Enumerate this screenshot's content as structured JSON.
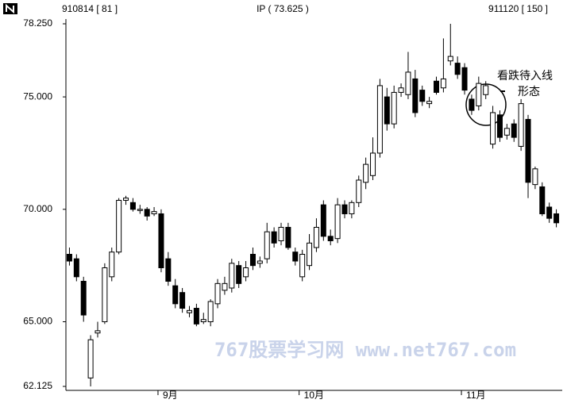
{
  "chart_data": {
    "type": "candlestick",
    "header_left": "910814 [ 81 ]",
    "header_center": "IP ( 73.625 )",
    "header_right": "911120 [ 150 ]",
    "annotation": [
      "看跌待入线",
      "形态"
    ],
    "watermark": "767股票学习网 www.net767.com",
    "categories": [
      null,
      null,
      null,
      null,
      null,
      null,
      null,
      null,
      null,
      null,
      null,
      null,
      null,
      "9月",
      null,
      null,
      null,
      null,
      null,
      null,
      null,
      null,
      null,
      null,
      null,
      null,
      null,
      null,
      null,
      null,
      null,
      null,
      null,
      "10月",
      null,
      null,
      null,
      null,
      null,
      null,
      null,
      null,
      null,
      null,
      null,
      null,
      null,
      null,
      null,
      null,
      null,
      null,
      null,
      null,
      null,
      null,
      "11月",
      null,
      null,
      null,
      null,
      null,
      null,
      null,
      null,
      null,
      null,
      null,
      null,
      null
    ],
    "open": [
      68.0,
      67.8,
      66.8,
      62.5,
      64.5,
      65.0,
      67.0,
      68.1,
      70.4,
      70.3,
      70.0,
      70.0,
      69.8,
      69.8,
      67.8,
      66.6,
      66.3,
      65.4,
      65.6,
      65.0,
      65.0,
      65.8,
      66.4,
      66.5,
      67.5,
      67.0,
      68.0,
      67.6,
      67.8,
      69.0,
      68.6,
      69.2,
      68.1,
      67.0,
      67.5,
      68.3,
      70.2,
      68.8,
      68.7,
      70.2,
      69.8,
      70.3,
      71.2,
      71.5,
      72.5,
      75.0,
      73.8,
      75.2,
      75.1,
      75.8,
      75.3,
      74.7,
      75.7,
      75.4,
      76.6,
      76.5,
      76.3,
      74.9,
      74.6,
      75.1,
      72.9,
      74.2,
      73.3,
      73.8,
      72.8,
      74.0,
      71.1,
      71.0,
      70.1,
      69.8
    ],
    "high": [
      68.3,
      68.0,
      67.0,
      64.4,
      65.0,
      67.6,
      68.3,
      70.5,
      70.6,
      70.5,
      70.2,
      70.1,
      70.1,
      70.0,
      68.1,
      66.9,
      66.5,
      65.7,
      65.8,
      65.4,
      66.0,
      66.9,
      67.0,
      67.8,
      67.7,
      67.7,
      68.3,
      67.9,
      69.4,
      69.2,
      69.4,
      69.4,
      68.3,
      68.2,
      68.9,
      69.6,
      70.4,
      69.1,
      70.5,
      70.4,
      70.4,
      71.5,
      72.3,
      73.2,
      75.8,
      75.4,
      75.5,
      75.6,
      77.0,
      76.2,
      75.5,
      75.0,
      75.9,
      77.6,
      78.25,
      76.8,
      76.5,
      75.1,
      75.9,
      75.7,
      74.6,
      74.4,
      73.8,
      74.0,
      74.9,
      74.2,
      71.9,
      71.2,
      70.3,
      70.0
    ],
    "low": [
      67.5,
      66.8,
      65.0,
      62.125,
      64.3,
      64.9,
      66.8,
      68.0,
      70.2,
      69.9,
      69.8,
      69.5,
      69.7,
      67.2,
      66.6,
      65.6,
      65.4,
      65.2,
      64.8,
      64.9,
      64.8,
      65.6,
      66.2,
      66.3,
      66.5,
      66.8,
      67.3,
      67.4,
      67.6,
      68.3,
      68.4,
      68.2,
      67.5,
      66.8,
      67.3,
      68.1,
      68.6,
      68.4,
      68.5,
      69.6,
      69.6,
      70.1,
      70.9,
      71.3,
      72.3,
      73.5,
      73.6,
      75.0,
      74.9,
      74.1,
      74.6,
      74.5,
      75.1,
      75.2,
      76.4,
      75.8,
      75.1,
      74.2,
      74.4,
      74.9,
      72.7,
      73.0,
      73.1,
      73.0,
      72.6,
      70.5,
      70.9,
      69.7,
      69.4,
      69.2
    ],
    "close": [
      67.7,
      67.0,
      65.3,
      64.2,
      64.6,
      67.4,
      68.1,
      70.4,
      70.5,
      70.0,
      70.0,
      69.7,
      69.9,
      67.4,
      66.8,
      65.8,
      65.6,
      65.5,
      64.9,
      65.1,
      65.9,
      66.7,
      66.7,
      67.6,
      66.7,
      67.4,
      67.5,
      67.7,
      69.0,
      68.5,
      69.2,
      68.3,
      67.7,
      68.0,
      68.5,
      69.2,
      68.8,
      68.6,
      70.2,
      69.8,
      70.3,
      71.3,
      72.0,
      72.5,
      75.5,
      73.8,
      75.2,
      75.4,
      76.1,
      74.3,
      74.8,
      74.8,
      75.2,
      75.8,
      76.8,
      76.0,
      75.3,
      74.4,
      75.6,
      75.5,
      74.3,
      73.2,
      73.6,
      73.2,
      74.7,
      71.2,
      71.8,
      69.8,
      69.6,
      69.4
    ],
    "up_color": "#ffffff",
    "down_color": "#000000",
    "ylim": [
      62.125,
      78.25
    ],
    "yticks": [
      {
        "value": 62.125,
        "label": "62.125"
      },
      {
        "value": 65,
        "label": "65.000"
      },
      {
        "value": 70,
        "label": "70.000"
      },
      {
        "value": 75,
        "label": "75.000"
      },
      {
        "value": 78.25,
        "label": "78.250"
      }
    ]
  }
}
